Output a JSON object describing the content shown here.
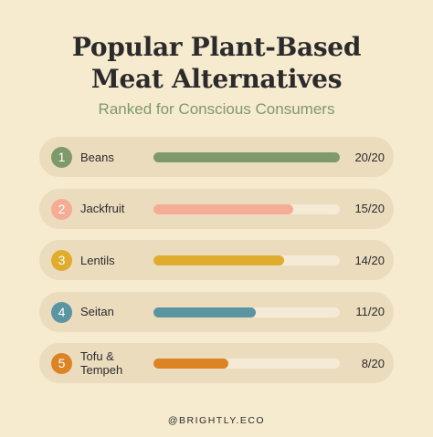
{
  "title_line1": "Popular Plant-Based",
  "title_line2": "Meat Alternatives",
  "subtitle": "Ranked for Conscious Consumers",
  "footer": "@BRIGHTLY.ECO",
  "chart_data": {
    "type": "bar",
    "title": "Popular Plant-Based Meat Alternatives",
    "subtitle": "Ranked for Conscious Consumers",
    "max": 20,
    "items": [
      {
        "rank": "1",
        "label": "Beans",
        "value": 20,
        "score": "20/20",
        "color": "#7e9a6c"
      },
      {
        "rank": "2",
        "label": "Jackfruit",
        "value": 15,
        "score": "15/20",
        "color": "#f4ad94"
      },
      {
        "rank": "3",
        "label": "Lentils",
        "value": 14,
        "score": "14/20",
        "color": "#e0ac2e"
      },
      {
        "rank": "4",
        "label": "Seitan",
        "value": 11,
        "score": "11/20",
        "color": "#5b95a1"
      },
      {
        "rank": "5",
        "label": "Tofu & Tempeh",
        "value": 8,
        "score": "8/20",
        "color": "#dc8424"
      }
    ]
  }
}
